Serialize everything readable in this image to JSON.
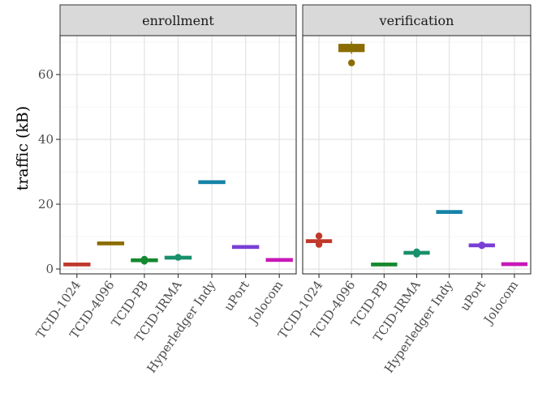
{
  "chart_data": {
    "type": "boxplot",
    "ylabel": "traffic (kB)",
    "ylim": [
      -1.5,
      72
    ],
    "yticks": [
      0,
      20,
      40,
      60
    ],
    "grid": true,
    "categories": [
      "TCID-1024",
      "TCID-4096",
      "TCID-PB",
      "TCID-IRMA",
      "Hyperledger Indy",
      "uPort",
      "Jolocom"
    ],
    "colors": [
      "#c0392b",
      "#8a6d00",
      "#16882f",
      "#17906b",
      "#1683a8",
      "#7a3fd6",
      "#c718b8"
    ],
    "panels": [
      {
        "title": "enrollment",
        "boxes": [
          {
            "q1": 1.3,
            "median": 1.4,
            "q3": 1.5,
            "whisker_low": 1.3,
            "whisker_high": 1.5,
            "outliers": []
          },
          {
            "q1": 7.8,
            "median": 7.9,
            "q3": 8.0,
            "whisker_low": 7.8,
            "whisker_high": 8.0,
            "outliers": []
          },
          {
            "q1": 2.5,
            "median": 2.7,
            "q3": 2.9,
            "whisker_low": 2.3,
            "whisker_high": 3.1,
            "outliers": [
              2.4,
              3.0
            ]
          },
          {
            "q1": 3.3,
            "median": 3.5,
            "q3": 3.7,
            "whisker_low": 3.1,
            "whisker_high": 3.9,
            "outliers": [
              3.6
            ]
          },
          {
            "q1": 26.7,
            "median": 26.8,
            "q3": 26.9,
            "whisker_low": 26.7,
            "whisker_high": 26.9,
            "outliers": []
          },
          {
            "q1": 6.7,
            "median": 6.8,
            "q3": 6.9,
            "whisker_low": 6.7,
            "whisker_high": 6.9,
            "outliers": []
          },
          {
            "q1": 2.7,
            "median": 2.8,
            "q3": 2.9,
            "whisker_low": 2.7,
            "whisker_high": 2.9,
            "outliers": []
          }
        ]
      },
      {
        "title": "verification",
        "boxes": [
          {
            "q1": 8.3,
            "median": 8.6,
            "q3": 8.9,
            "whisker_low": 8.0,
            "whisker_high": 9.2,
            "outliers": [
              7.6,
              10.2
            ]
          },
          {
            "q1": 67.2,
            "median": 68.0,
            "q3": 69.2,
            "whisker_low": 66.4,
            "whisker_high": 70.2,
            "outliers": [
              63.6
            ]
          },
          {
            "q1": 1.3,
            "median": 1.4,
            "q3": 1.5,
            "whisker_low": 1.3,
            "whisker_high": 1.5,
            "outliers": []
          },
          {
            "q1": 4.8,
            "median": 5.0,
            "q3": 5.2,
            "whisker_low": 4.5,
            "whisker_high": 5.5,
            "outliers": [
              4.6,
              5.3
            ]
          },
          {
            "q1": 17.5,
            "median": 17.6,
            "q3": 17.7,
            "whisker_low": 17.5,
            "whisker_high": 17.7,
            "outliers": []
          },
          {
            "q1": 7.1,
            "median": 7.3,
            "q3": 7.5,
            "whisker_low": 6.9,
            "whisker_high": 7.7,
            "outliers": [
              7.2,
              7.4
            ]
          },
          {
            "q1": 1.4,
            "median": 1.5,
            "q3": 1.6,
            "whisker_low": 1.4,
            "whisker_high": 1.6,
            "outliers": []
          }
        ]
      }
    ]
  }
}
